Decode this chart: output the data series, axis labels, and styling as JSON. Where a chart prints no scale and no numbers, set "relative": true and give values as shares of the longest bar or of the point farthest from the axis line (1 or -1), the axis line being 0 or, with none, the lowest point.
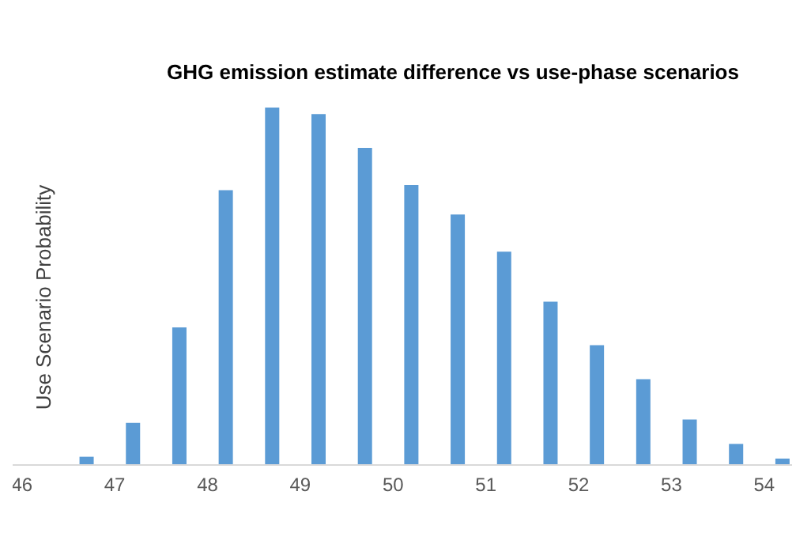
{
  "chart_data": {
    "type": "bar",
    "title": "GHG emission estimate difference vs use-phase scenarios",
    "ylabel": "Use Scenario Probability",
    "relative": true,
    "x": [
      46.7,
      47.2,
      47.7,
      48.2,
      48.7,
      49.2,
      49.7,
      50.2,
      50.7,
      51.2,
      51.7,
      52.2,
      52.7,
      53.2,
      53.7,
      54.2
    ],
    "values": [
      0.023,
      0.118,
      0.385,
      0.769,
      1,
      0.982,
      0.887,
      0.783,
      0.701,
      0.597,
      0.457,
      0.335,
      0.24,
      0.127,
      0.059,
      0.018
    ],
    "color": "#5b9bd5",
    "xlim": [
      45.9,
      54.3
    ],
    "xticks": [
      46,
      47,
      48,
      49,
      50,
      51,
      52,
      53,
      54
    ],
    "grid": false,
    "legend": false
  }
}
